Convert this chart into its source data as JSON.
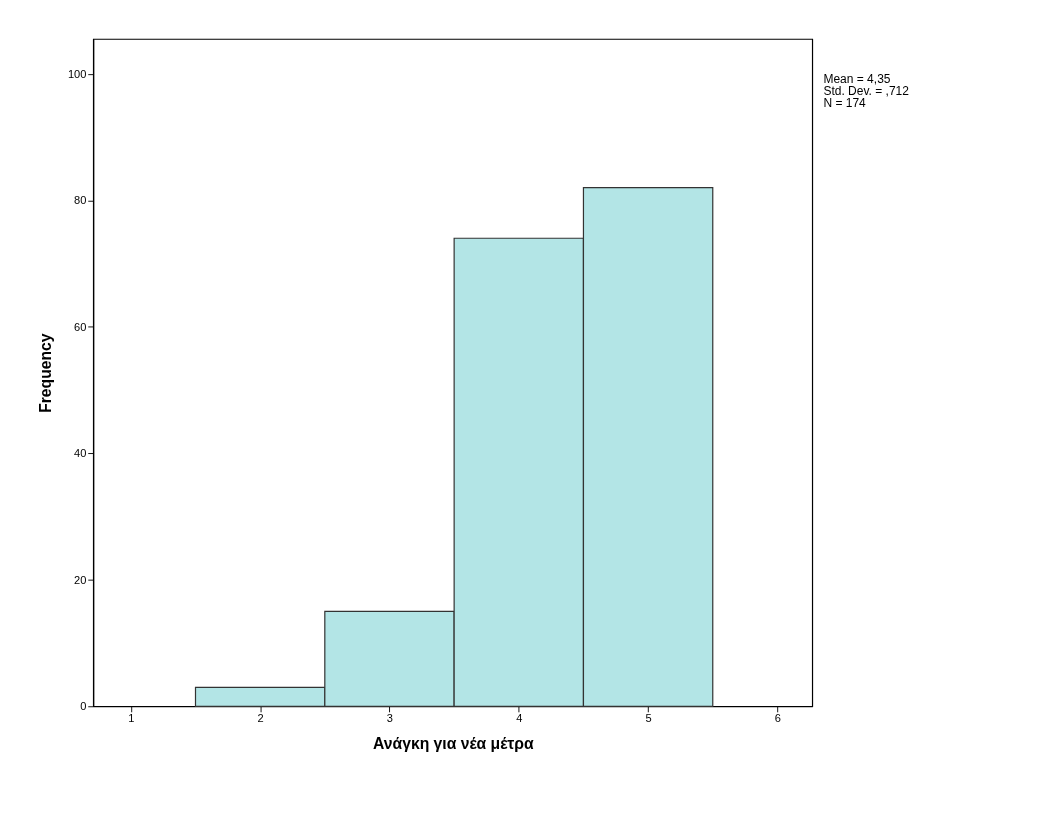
{
  "chart_data": {
    "type": "histogram",
    "xlabel": "Ανάγκη για νέα μέτρα",
    "ylabel": "Frequency",
    "bins": [
      1.5,
      2.5,
      3.5,
      4.5,
      5.5
    ],
    "values": [
      3,
      15,
      74,
      82
    ],
    "color": "#b3e5e6",
    "xlim": [
      0.71,
      6.27
    ],
    "xticks": [
      1,
      2,
      3,
      4,
      5,
      6
    ],
    "ylim": [
      0,
      105.5
    ],
    "yticks": [
      0,
      20,
      40,
      60,
      80,
      100
    ],
    "grid": false,
    "annotations": [
      "Mean = 4,35",
      "Std. Dev. = ,712",
      "N = 174"
    ]
  }
}
